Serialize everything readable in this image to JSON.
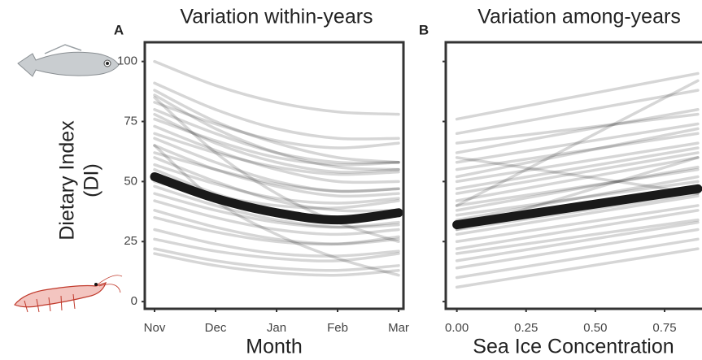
{
  "chart_data": [
    {
      "type": "line",
      "panel_label": "A",
      "title": "Variation within-years",
      "x_label": "Month",
      "y_label": [
        "Dietary Index",
        "(DI)"
      ],
      "categories": [
        "Nov",
        "Dec",
        "Jan",
        "Feb",
        "Mar"
      ],
      "ylim": [
        -3,
        108
      ],
      "yticks": [
        0,
        25,
        50,
        75,
        100
      ],
      "draws": [
        {
          "color": "#000000",
          "values": [
            100,
            90,
            83,
            79,
            78
          ]
        },
        {
          "color": "#000000",
          "values": [
            91,
            80,
            72,
            68,
            68
          ]
        },
        {
          "color": "#000000",
          "values": [
            88,
            75,
            66,
            60,
            58
          ]
        },
        {
          "color": "#000000",
          "values": [
            86,
            72,
            62,
            56,
            55
          ]
        },
        {
          "color": "#000000",
          "values": [
            83,
            74,
            67,
            64,
            66
          ]
        },
        {
          "color": "#000000",
          "values": [
            80,
            70,
            62,
            58,
            58
          ]
        },
        {
          "color": "#000000",
          "values": [
            78,
            66,
            58,
            54,
            55
          ]
        },
        {
          "color": "#000000",
          "values": [
            76,
            67,
            60,
            57,
            58
          ]
        },
        {
          "color": "#000000",
          "values": [
            73,
            63,
            55,
            50,
            50
          ]
        },
        {
          "color": "#000000",
          "values": [
            70,
            62,
            56,
            53,
            54
          ]
        },
        {
          "color": "#000000",
          "values": [
            68,
            58,
            50,
            46,
            47
          ]
        },
        {
          "color": "#000000",
          "values": [
            65,
            55,
            48,
            44,
            45
          ]
        },
        {
          "color": "#000000",
          "values": [
            62,
            55,
            49,
            46,
            47
          ]
        },
        {
          "color": "#000000",
          "values": [
            60,
            50,
            42,
            38,
            38
          ]
        },
        {
          "color": "#000000",
          "values": [
            57,
            49,
            43,
            41,
            43
          ]
        },
        {
          "color": "#000000",
          "values": [
            55,
            45,
            38,
            35,
            37
          ]
        },
        {
          "color": "#000000",
          "values": [
            50,
            44,
            40,
            39,
            42
          ]
        },
        {
          "color": "#000000",
          "values": [
            48,
            40,
            34,
            31,
            32
          ]
        },
        {
          "color": "#000000",
          "values": [
            45,
            38,
            33,
            31,
            33
          ]
        },
        {
          "color": "#000000",
          "values": [
            42,
            35,
            30,
            28,
            30
          ]
        },
        {
          "color": "#000000",
          "values": [
            38,
            31,
            26,
            24,
            26
          ]
        },
        {
          "color": "#000000",
          "values": [
            35,
            29,
            25,
            24,
            27
          ]
        },
        {
          "color": "#000000",
          "values": [
            30,
            24,
            20,
            19,
            21
          ]
        },
        {
          "color": "#000000",
          "values": [
            26,
            21,
            18,
            17,
            20
          ]
        },
        {
          "color": "#000000",
          "values": [
            22,
            17,
            14,
            13,
            15
          ]
        },
        {
          "color": "#000000",
          "values": [
            20,
            15,
            12,
            11,
            13
          ]
        },
        {
          "color": "#000000",
          "values": [
            65,
            42,
            28,
            18,
            11
          ]
        },
        {
          "color": "#000000",
          "values": [
            85,
            62,
            45,
            33,
            25
          ]
        }
      ],
      "fit": {
        "color": "#1a1a1a",
        "values": [
          52,
          43,
          37,
          34,
          37
        ]
      }
    },
    {
      "type": "scatterline",
      "panel_label": "B",
      "title": "Variation among-years",
      "x_label": "Sea Ice Concentration",
      "x": [
        0,
        0.87
      ],
      "xlim": [
        -0.04,
        0.885
      ],
      "xticks": [
        {
          "value": 0,
          "label": "0.00"
        },
        {
          "value": 0.25,
          "label": "0.25"
        },
        {
          "value": 0.5,
          "label": "0.50"
        },
        {
          "value": 0.75,
          "label": "0.75"
        }
      ],
      "ylim": [
        -3,
        108
      ],
      "yticks": [
        0,
        25,
        50,
        75,
        100
      ],
      "draws": [
        {
          "color": "#000000",
          "values": [
            76,
            95
          ]
        },
        {
          "color": "#000000",
          "values": [
            70,
            88
          ]
        },
        {
          "color": "#000000",
          "values": [
            66,
            78
          ]
        },
        {
          "color": "#000000",
          "values": [
            62,
            80
          ]
        },
        {
          "color": "#000000",
          "values": [
            58,
            74
          ]
        },
        {
          "color": "#000000",
          "values": [
            55,
            70
          ]
        },
        {
          "color": "#000000",
          "values": [
            52,
            72
          ]
        },
        {
          "color": "#000000",
          "values": [
            50,
            66
          ]
        },
        {
          "color": "#000000",
          "values": [
            47,
            64
          ]
        },
        {
          "color": "#000000",
          "values": [
            45,
            62
          ]
        },
        {
          "color": "#000000",
          "values": [
            42,
            60
          ]
        },
        {
          "color": "#000000",
          "values": [
            40,
            55
          ]
        },
        {
          "color": "#000000",
          "values": [
            38,
            56
          ]
        },
        {
          "color": "#000000",
          "values": [
            36,
            50
          ]
        },
        {
          "color": "#000000",
          "values": [
            34,
            52
          ]
        },
        {
          "color": "#000000",
          "values": [
            32,
            46
          ]
        },
        {
          "color": "#000000",
          "values": [
            30,
            45
          ]
        },
        {
          "color": "#000000",
          "values": [
            28,
            44
          ]
        },
        {
          "color": "#000000",
          "values": [
            25,
            40
          ]
        },
        {
          "color": "#000000",
          "values": [
            22,
            38
          ]
        },
        {
          "color": "#000000",
          "values": [
            20,
            34
          ]
        },
        {
          "color": "#000000",
          "values": [
            17,
            33
          ]
        },
        {
          "color": "#000000",
          "values": [
            14,
            30
          ]
        },
        {
          "color": "#000000",
          "values": [
            10,
            26
          ]
        },
        {
          "color": "#000000",
          "values": [
            6,
            22
          ]
        },
        {
          "color": "#000000",
          "values": [
            40,
            92
          ]
        },
        {
          "color": "#000000",
          "values": [
            60,
            45
          ]
        },
        {
          "color": "#000000",
          "values": [
            30,
            60
          ]
        }
      ],
      "fit": {
        "color": "#1a1a1a",
        "values": [
          32,
          47
        ]
      }
    }
  ]
}
